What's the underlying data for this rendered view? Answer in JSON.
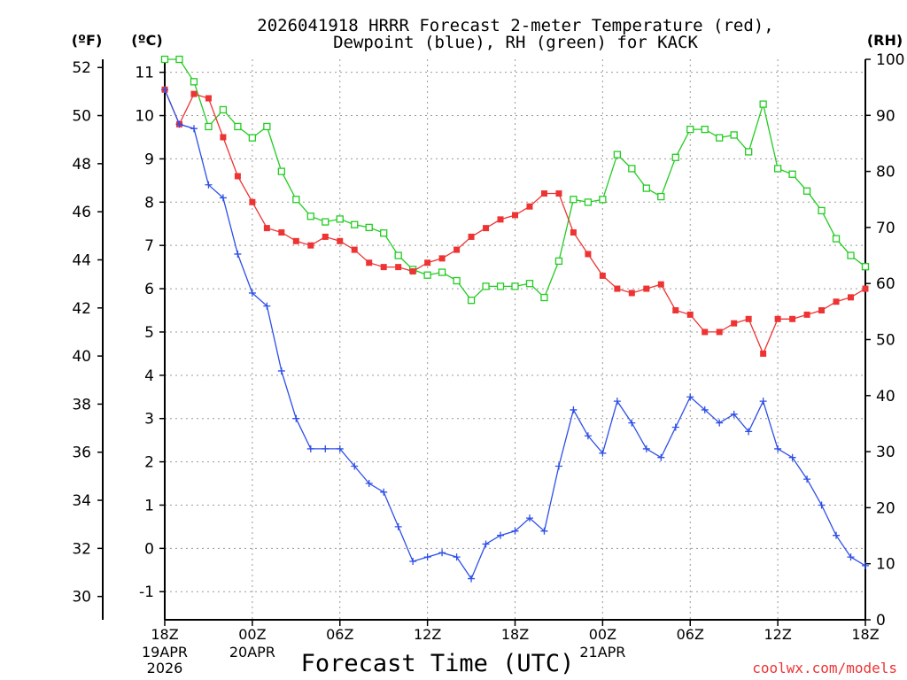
{
  "chart_data": {
    "type": "line",
    "title_line1": "2026041918 HRRR Forecast 2-meter Temperature (red),",
    "title_line2": "Dewpoint (blue), RH (green) for KACK",
    "xlabel": "Forecast Time (UTC)",
    "credit": "coolwx.com/models",
    "units": {
      "fahrenheit": "(ºF)",
      "celsius": "(ºC)",
      "rh": "(RH)"
    },
    "x_range_hours": [
      0,
      48
    ],
    "celsius_range": [
      -1.65,
      11.3
    ],
    "rh_range": [
      0,
      100
    ],
    "fahrenheit_ticks": [
      "30",
      "32",
      "34",
      "36",
      "38",
      "40",
      "42",
      "44",
      "46",
      "48",
      "50",
      "52"
    ],
    "celsius_ticks": [
      "-1",
      "0",
      "1",
      "2",
      "3",
      "4",
      "5",
      "6",
      "7",
      "8",
      "9",
      "10",
      "11"
    ],
    "rh_ticks": [
      "0",
      "10",
      "20",
      "30",
      "40",
      "50",
      "60",
      "70",
      "80",
      "90",
      "100"
    ],
    "x_ticks": [
      {
        "hour": 0,
        "label": "18Z",
        "date": "19APR",
        "year": "2026"
      },
      {
        "hour": 6,
        "label": "00Z",
        "date": "20APR",
        "year": ""
      },
      {
        "hour": 12,
        "label": "06Z",
        "date": "",
        "year": ""
      },
      {
        "hour": 18,
        "label": "12Z",
        "date": "",
        "year": ""
      },
      {
        "hour": 24,
        "label": "18Z",
        "date": "",
        "year": ""
      },
      {
        "hour": 30,
        "label": "00Z",
        "date": "21APR",
        "year": ""
      },
      {
        "hour": 36,
        "label": "06Z",
        "date": "",
        "year": ""
      },
      {
        "hour": 42,
        "label": "12Z",
        "date": "",
        "year": ""
      },
      {
        "hour": 48,
        "label": "18Z",
        "date": "",
        "year": ""
      }
    ],
    "colors": {
      "temperature": "#ee3333",
      "dewpoint": "#2e4fe8",
      "rh": "#22cc22",
      "grid": "#999999",
      "axis": "#000000"
    },
    "series": [
      {
        "name": "Temperature (°C)",
        "axis": "celsius",
        "values": [
          10.6,
          9.8,
          10.5,
          10.4,
          9.5,
          8.6,
          8.0,
          7.4,
          7.3,
          7.1,
          7.0,
          7.2,
          7.1,
          6.9,
          6.6,
          6.5,
          6.5,
          6.4,
          6.6,
          6.7,
          6.9,
          7.2,
          7.4,
          7.6,
          7.7,
          7.9,
          8.2,
          8.2,
          7.3,
          6.8,
          6.3,
          6.0,
          5.9,
          6.0,
          6.1,
          5.5,
          5.4,
          5.0,
          5.0,
          5.2,
          5.3,
          4.5,
          5.3,
          5.3,
          5.4,
          5.5,
          5.7,
          5.8,
          6.0
        ]
      },
      {
        "name": "Dewpoint (°C)",
        "axis": "celsius",
        "values": [
          10.6,
          9.8,
          9.7,
          8.4,
          8.1,
          6.8,
          5.9,
          5.6,
          4.1,
          3.0,
          2.3,
          2.3,
          2.3,
          1.9,
          1.5,
          1.3,
          0.5,
          -0.3,
          -0.2,
          -0.1,
          -0.2,
          -0.7,
          0.1,
          0.3,
          0.4,
          0.7,
          0.4,
          1.9,
          3.2,
          2.6,
          2.2,
          3.4,
          2.9,
          2.3,
          2.1,
          2.8,
          3.5,
          3.2,
          2.9,
          3.1,
          2.7,
          3.4,
          2.3,
          2.1,
          1.6,
          1.0,
          0.3,
          -0.2,
          -0.4
        ]
      },
      {
        "name": "RH (%)",
        "axis": "rh",
        "values": [
          100,
          100,
          96,
          88,
          91,
          88,
          86,
          88,
          80,
          75,
          72,
          71,
          71.5,
          70.5,
          70,
          69,
          65,
          62.5,
          61.5,
          62,
          60.5,
          57,
          59.5,
          59.5,
          59.5,
          60,
          57.5,
          64,
          75,
          74.5,
          75,
          83,
          80.5,
          77,
          75.5,
          82.5,
          87.5,
          87.5,
          86,
          86.5,
          83.5,
          92,
          80.5,
          79.5,
          76.5,
          73,
          68,
          65,
          63
        ]
      }
    ]
  }
}
